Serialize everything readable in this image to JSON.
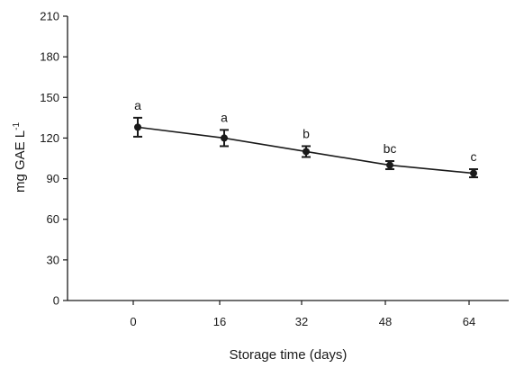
{
  "chart_data": {
    "type": "line",
    "title": "",
    "xlabel": "Storage time (days)",
    "ylabel": "mg GAE L",
    "ylabel_superscript": "-1",
    "x": [
      0,
      16,
      32,
      48,
      64
    ],
    "x_ticks": [
      "0",
      "16",
      "32",
      "48",
      "64"
    ],
    "ylim": [
      0,
      210
    ],
    "y_ticks": [
      "0",
      "30",
      "60",
      "90",
      "120",
      "150",
      "180",
      "210"
    ],
    "grid": false,
    "series": [
      {
        "values": [
          128,
          120,
          110,
          100,
          94
        ],
        "errors": [
          7,
          6,
          4,
          3,
          3
        ],
        "letters": [
          "a",
          "a",
          "b",
          "bc",
          "c"
        ],
        "color": "#1a1a1a"
      }
    ]
  }
}
